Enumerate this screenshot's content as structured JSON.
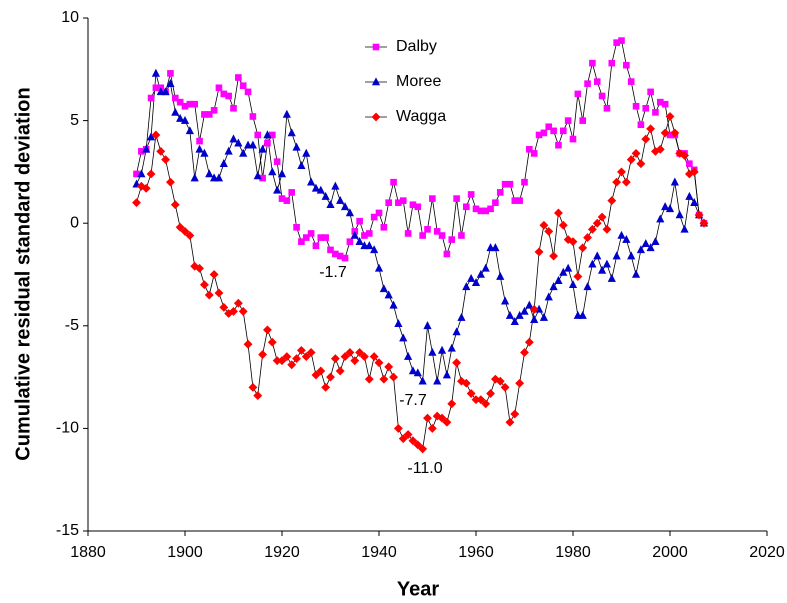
{
  "chart_data": {
    "type": "line",
    "x_label": "Year",
    "y_label": "Cumulative residual standard deviation",
    "xlim": [
      1880,
      2020
    ],
    "xticks": [
      1880,
      1900,
      1920,
      1940,
      1960,
      1980,
      2000,
      2020
    ],
    "ylim": [
      -15,
      10
    ],
    "yticks": [
      -15,
      -10,
      -5,
      0,
      5,
      10
    ],
    "grid": false,
    "legend": "upper center",
    "x": [
      1890,
      1891,
      1892,
      1893,
      1894,
      1895,
      1896,
      1897,
      1898,
      1899,
      1900,
      1901,
      1902,
      1903,
      1904,
      1905,
      1906,
      1907,
      1908,
      1909,
      1910,
      1911,
      1912,
      1913,
      1914,
      1915,
      1916,
      1917,
      1918,
      1919,
      1920,
      1921,
      1922,
      1923,
      1924,
      1925,
      1926,
      1927,
      1928,
      1929,
      1930,
      1931,
      1932,
      1933,
      1934,
      1935,
      1936,
      1937,
      1938,
      1939,
      1940,
      1941,
      1942,
      1943,
      1944,
      1945,
      1946,
      1947,
      1948,
      1949,
      1950,
      1951,
      1952,
      1953,
      1954,
      1955,
      1956,
      1957,
      1958,
      1959,
      1960,
      1961,
      1962,
      1963,
      1964,
      1965,
      1966,
      1967,
      1968,
      1969,
      1970,
      1971,
      1972,
      1973,
      1974,
      1975,
      1976,
      1977,
      1978,
      1979,
      1980,
      1981,
      1982,
      1983,
      1984,
      1985,
      1986,
      1987,
      1988,
      1989,
      1990,
      1991,
      1992,
      1993,
      1994,
      1995,
      1996,
      1997,
      1998,
      1999,
      2000,
      2001,
      2002,
      2003,
      2004,
      2005,
      2006,
      2007
    ],
    "series": [
      {
        "name": "Dalby",
        "color": "#ff00ff",
        "marker": "square",
        "values": [
          2.4,
          3.5,
          3.6,
          6.1,
          6.6,
          6.6,
          6.4,
          7.3,
          6.1,
          5.9,
          5.7,
          5.8,
          5.8,
          4.0,
          5.3,
          5.3,
          5.5,
          6.6,
          6.3,
          6.2,
          5.6,
          7.1,
          6.7,
          6.4,
          5.2,
          4.3,
          2.2,
          3.9,
          4.3,
          3.0,
          1.2,
          1.1,
          1.5,
          -0.2,
          -0.9,
          -0.7,
          -0.5,
          -1.1,
          -0.7,
          -0.7,
          -1.3,
          -1.5,
          -1.6,
          -1.7,
          -0.9,
          -0.4,
          0.1,
          -0.6,
          -0.5,
          0.3,
          0.5,
          -0.2,
          1.0,
          2.0,
          1.0,
          1.1,
          -0.5,
          0.9,
          0.8,
          -0.6,
          -0.3,
          1.2,
          -0.4,
          -0.6,
          -1.5,
          -0.8,
          1.2,
          -0.6,
          0.8,
          1.4,
          0.7,
          0.6,
          0.6,
          0.7,
          1.0,
          1.5,
          1.9,
          1.9,
          1.1,
          1.1,
          2.0,
          3.6,
          3.4,
          4.3,
          4.4,
          4.7,
          4.5,
          3.8,
          4.5,
          5.0,
          4.1,
          6.3,
          5.0,
          6.8,
          7.8,
          6.9,
          6.2,
          5.6,
          7.8,
          8.8,
          8.9,
          7.7,
          6.9,
          5.7,
          4.8,
          5.6,
          6.4,
          5.4,
          5.9,
          5.8,
          4.3,
          4.3,
          3.4,
          3.4,
          2.9,
          2.6,
          0.4,
          0.0
        ]
      },
      {
        "name": "Moree",
        "color": "#0000cc",
        "marker": "triangle",
        "values": [
          1.9,
          2.4,
          3.6,
          4.2,
          7.3,
          6.4,
          6.4,
          6.8,
          5.4,
          5.1,
          5.0,
          4.5,
          2.2,
          3.6,
          3.4,
          2.4,
          2.2,
          2.2,
          2.9,
          3.5,
          4.1,
          3.9,
          3.4,
          3.8,
          3.8,
          2.3,
          3.6,
          4.3,
          2.5,
          1.6,
          2.4,
          5.3,
          4.4,
          3.7,
          2.8,
          3.4,
          2.0,
          1.7,
          1.6,
          1.3,
          0.9,
          1.8,
          1.1,
          0.8,
          0.5,
          -0.6,
          -0.9,
          -1.1,
          -1.1,
          -1.3,
          -2.2,
          -3.2,
          -3.5,
          -4.0,
          -4.9,
          -5.6,
          -6.5,
          -7.2,
          -7.3,
          -7.7,
          -5.0,
          -6.3,
          -7.7,
          -6.2,
          -7.4,
          -6.1,
          -5.3,
          -4.6,
          -3.1,
          -2.7,
          -2.9,
          -2.5,
          -2.2,
          -1.2,
          -1.2,
          -2.6,
          -3.8,
          -4.5,
          -4.8,
          -4.5,
          -4.3,
          -4.0,
          -4.7,
          -4.2,
          -4.6,
          -3.6,
          -3.1,
          -2.8,
          -2.4,
          -2.2,
          -3.0,
          -4.5,
          -4.5,
          -3.1,
          -2.0,
          -1.6,
          -2.3,
          -2.0,
          -2.7,
          -1.6,
          -0.6,
          -0.8,
          -1.6,
          -2.5,
          -1.3,
          -1.0,
          -1.2,
          -0.9,
          0.2,
          0.8,
          0.7,
          2.0,
          0.4,
          -0.3,
          1.3,
          1.0,
          0.4,
          0.0
        ]
      },
      {
        "name": "Wagga",
        "color": "#ff0000",
        "marker": "diamond",
        "values": [
          1.0,
          1.8,
          1.7,
          2.4,
          4.3,
          3.5,
          3.1,
          2.0,
          0.9,
          -0.2,
          -0.4,
          -0.6,
          -2.1,
          -2.2,
          -3.0,
          -3.5,
          -2.5,
          -3.4,
          -4.1,
          -4.4,
          -4.3,
          -3.9,
          -4.3,
          -5.9,
          -8.0,
          -8.4,
          -6.4,
          -5.2,
          -5.8,
          -6.7,
          -6.7,
          -6.5,
          -6.9,
          -6.6,
          -6.2,
          -6.5,
          -6.3,
          -7.4,
          -7.2,
          -8.0,
          -7.5,
          -6.6,
          -7.2,
          -6.5,
          -6.3,
          -6.7,
          -6.3,
          -6.5,
          -7.6,
          -6.5,
          -6.8,
          -7.6,
          -7.0,
          -7.5,
          -10.0,
          -10.5,
          -10.3,
          -10.6,
          -10.8,
          -11.0,
          -9.5,
          -10.0,
          -9.4,
          -9.5,
          -9.7,
          -8.8,
          -6.8,
          -7.7,
          -7.8,
          -8.3,
          -8.6,
          -8.6,
          -8.8,
          -8.3,
          -7.6,
          -7.7,
          -8.0,
          -9.7,
          -9.3,
          -7.8,
          -6.3,
          -5.8,
          -4.2,
          -1.4,
          -0.1,
          -0.4,
          -1.6,
          0.5,
          -0.1,
          -0.8,
          -0.9,
          -2.6,
          -1.2,
          -0.7,
          -0.3,
          0.0,
          0.3,
          -0.3,
          1.1,
          2.0,
          2.5,
          2.0,
          3.1,
          3.4,
          2.9,
          4.1,
          4.6,
          3.5,
          3.6,
          4.4,
          5.2,
          4.4,
          3.4,
          3.3,
          2.4,
          2.5,
          0.4,
          0.0
        ]
      }
    ],
    "annotations": [
      "-1.7",
      "-7.7",
      "-11.0"
    ]
  }
}
